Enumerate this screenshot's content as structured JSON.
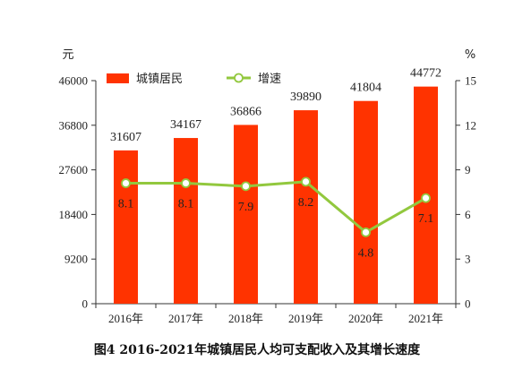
{
  "chart_data": {
    "type": "bar",
    "title": "图4  2016-2021年城镇居民人均可支配收入及其增长速度",
    "categories": [
      "2016年",
      "2017年",
      "2018年",
      "2019年",
      "2020年",
      "2021年"
    ],
    "series": [
      {
        "name": "城镇居民",
        "type": "bar",
        "axis": "left",
        "values": [
          31607,
          34167,
          36866,
          39890,
          41804,
          44772
        ],
        "color": "#ff3300"
      },
      {
        "name": "增速",
        "type": "line",
        "axis": "right",
        "values": [
          8.1,
          8.1,
          7.9,
          8.2,
          4.8,
          7.1
        ],
        "color": "#92c83e"
      }
    ],
    "y_left": {
      "unit": "元",
      "ylim": [
        0,
        46000
      ],
      "ticks": [
        0,
        9200,
        18400,
        27600,
        36800,
        46000
      ]
    },
    "y_right": {
      "unit": "%",
      "ylim": [
        0,
        15
      ],
      "ticks": [
        0,
        3,
        6,
        9,
        12,
        15
      ]
    },
    "legend": {
      "placement": "top-left"
    },
    "grid": false
  }
}
